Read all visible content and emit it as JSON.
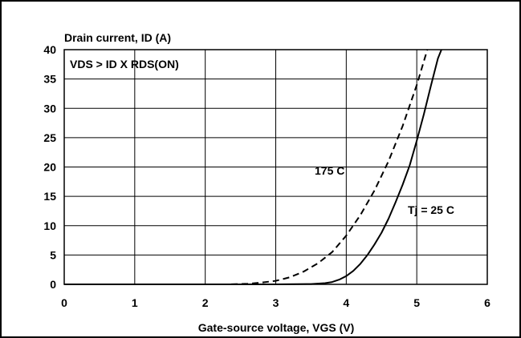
{
  "chart_data": {
    "type": "line",
    "ylabel": "Drain current, ID (A)",
    "xlabel": "Gate-source voltage, VGS (V)",
    "condition_label": "VDS > ID X RDS(ON)",
    "xlim": [
      0,
      6
    ],
    "ylim": [
      0,
      40
    ],
    "x_ticks": [
      "0",
      "1",
      "2",
      "3",
      "4",
      "5",
      "6"
    ],
    "y_ticks": [
      "0",
      "5",
      "10",
      "15",
      "20",
      "25",
      "30",
      "35",
      "40"
    ],
    "grid": true,
    "series": [
      {
        "name": "Tj = 25 C",
        "style": "solid",
        "points": [
          [
            0,
            0
          ],
          [
            3.0,
            0
          ],
          [
            3.5,
            0.05
          ],
          [
            3.7,
            0.2
          ],
          [
            3.8,
            0.4
          ],
          [
            3.9,
            0.8
          ],
          [
            4.0,
            1.4
          ],
          [
            4.1,
            2.3
          ],
          [
            4.2,
            3.5
          ],
          [
            4.3,
            5.0
          ],
          [
            4.4,
            6.8
          ],
          [
            4.5,
            8.8
          ],
          [
            4.6,
            11.2
          ],
          [
            4.7,
            14.0
          ],
          [
            4.8,
            17.0
          ],
          [
            4.9,
            20.3
          ],
          [
            5.0,
            24.5
          ],
          [
            5.1,
            29.0
          ],
          [
            5.2,
            33.8
          ],
          [
            5.3,
            38.5
          ],
          [
            5.35,
            40
          ]
        ]
      },
      {
        "name": "175 C",
        "style": "dashed",
        "points": [
          [
            0,
            0
          ],
          [
            2.3,
            0
          ],
          [
            2.6,
            0.1
          ],
          [
            2.8,
            0.3
          ],
          [
            3.0,
            0.6
          ],
          [
            3.2,
            1.2
          ],
          [
            3.4,
            2.2
          ],
          [
            3.6,
            3.6
          ],
          [
            3.8,
            5.5
          ],
          [
            4.0,
            8.3
          ],
          [
            4.2,
            11.8
          ],
          [
            4.4,
            16.0
          ],
          [
            4.6,
            21.0
          ],
          [
            4.8,
            27.0
          ],
          [
            5.0,
            34.0
          ],
          [
            5.15,
            40
          ]
        ]
      }
    ]
  }
}
